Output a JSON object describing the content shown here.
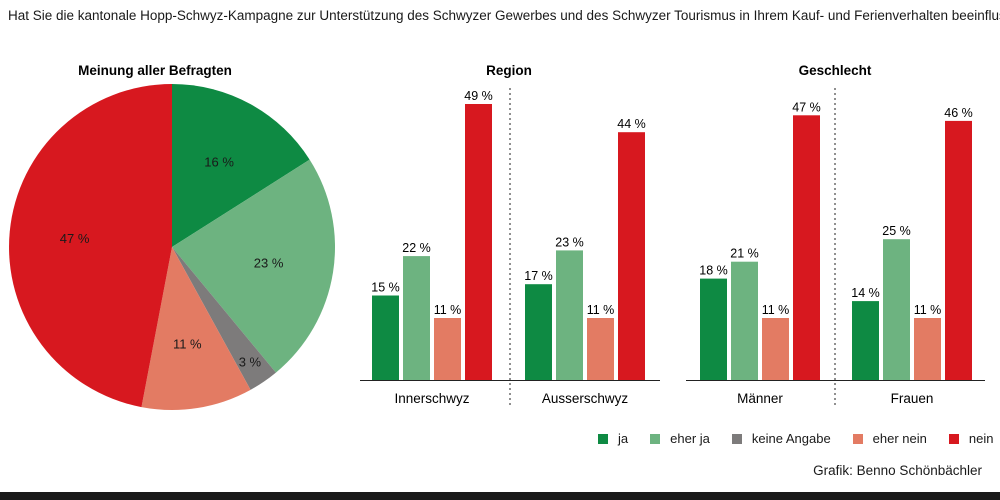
{
  "question": "Hat Sie die kantonale Hopp-Schwyz-Kampagne zur Unterstützung des Schwyzer Gewerbes und des Schwyzer Tourismus in Ihrem Kauf- und Ferienverhalten beeinflusst?",
  "credit": "Grafik: Benno Schönbächler",
  "colors": {
    "ja": "#0e8a43",
    "eher ja": "#6db380",
    "keine Angabe": "#7d7b7b",
    "eher nein": "#e37b63",
    "nein": "#d7181f"
  },
  "legend": [
    {
      "key": "ja",
      "label": "ja"
    },
    {
      "key": "eher ja",
      "label": "eher ja"
    },
    {
      "key": "keine Angabe",
      "label": "keine Angabe"
    },
    {
      "key": "eher nein",
      "label": "eher nein"
    },
    {
      "key": "nein",
      "label": "nein"
    }
  ],
  "chart_data": [
    {
      "type": "pie",
      "title": "Meinung aller Befragten",
      "slices": [
        {
          "label": "ja",
          "value": 16
        },
        {
          "label": "eher ja",
          "value": 23
        },
        {
          "label": "keine Angabe",
          "value": 3
        },
        {
          "label": "eher nein",
          "value": 11
        },
        {
          "label": "nein",
          "value": 47
        }
      ],
      "data_labels": [
        "16 %",
        "23 %",
        "3 %",
        "11 %",
        "47 %"
      ]
    },
    {
      "type": "bar",
      "title": "Region",
      "categories": [
        "Innerschwyz",
        "Ausserschwyz"
      ],
      "series": [
        {
          "name": "ja",
          "values": [
            15,
            17
          ]
        },
        {
          "name": "eher ja",
          "values": [
            22,
            23
          ]
        },
        {
          "name": "eher nein",
          "values": [
            11,
            11
          ]
        },
        {
          "name": "nein",
          "values": [
            49,
            44
          ]
        }
      ],
      "data_labels": [
        [
          "15 %",
          "22 %",
          "11 %",
          "49 %"
        ],
        [
          "17 %",
          "23 %",
          "11 %",
          "44 %"
        ]
      ]
    },
    {
      "type": "bar",
      "title": "Geschlecht",
      "categories": [
        "Männer",
        "Frauen"
      ],
      "series": [
        {
          "name": "ja",
          "values": [
            18,
            14
          ]
        },
        {
          "name": "eher ja",
          "values": [
            21,
            25
          ]
        },
        {
          "name": "eher nein",
          "values": [
            11,
            11
          ]
        },
        {
          "name": "nein",
          "values": [
            47,
            46
          ]
        }
      ],
      "data_labels": [
        [
          "18 %",
          "21 %",
          "11 %",
          "47 %"
        ],
        [
          "14 %",
          "25 %",
          "11 %",
          "46 %"
        ]
      ]
    }
  ]
}
